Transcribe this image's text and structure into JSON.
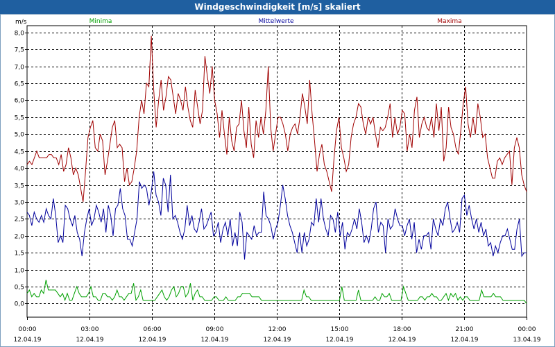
{
  "window": {
    "title": "Windgeschwindigkeit [m/s] skaliert"
  },
  "colors": {
    "minima": "#00a000",
    "mittel": "#00009c",
    "maxima": "#a00000",
    "grid": "#000000"
  },
  "chart_data": {
    "type": "line",
    "ylabel": "m/s",
    "ylim": [
      -0.4,
      8.2
    ],
    "yticks": [
      "0,0",
      "0,5",
      "1,0",
      "1,5",
      "2,0",
      "2,5",
      "3,0",
      "3,5",
      "4,0",
      "4,5",
      "5,0",
      "5,5",
      "6,0",
      "6,5",
      "7,0",
      "7,5",
      "8,0"
    ],
    "yticks_values": [
      0,
      0.5,
      1,
      1.5,
      2,
      2.5,
      3,
      3.5,
      4,
      4.5,
      5,
      5.5,
      6,
      6.5,
      7,
      7.5,
      8
    ],
    "xlim": [
      0,
      24
    ],
    "xticks": [
      {
        "time": "00:00",
        "date": "12.04.19"
      },
      {
        "time": "03:00",
        "date": "12.04.19"
      },
      {
        "time": "06:00",
        "date": "12.04.19"
      },
      {
        "time": "09:00",
        "date": "12.04.19"
      },
      {
        "time": "12:00",
        "date": "12.04.19"
      },
      {
        "time": "15:00",
        "date": "12.04.19"
      },
      {
        "time": "18:00",
        "date": "12.04.19"
      },
      {
        "time": "21:00",
        "date": "12.04.19"
      },
      {
        "time": "00:00",
        "date": "13.04.19"
      }
    ],
    "series": [
      {
        "name": "Minima",
        "values": [
          0.3,
          0.4,
          0.2,
          0.3,
          0.2,
          0.2,
          0.4,
          0.3,
          0.7,
          0.4,
          0.4,
          0.4,
          0.4,
          0.3,
          0.2,
          0.3,
          0.1,
          0.3,
          0.1,
          0.1,
          0.3,
          0.5,
          0.3,
          0.2,
          0.2,
          0.2,
          0.3,
          0.5,
          0.2,
          0.2,
          0.1,
          0.1,
          0.3,
          0.3,
          0.2,
          0.2,
          0.1,
          0.2,
          0.4,
          0.2,
          0.2,
          0.1,
          0.2,
          0.3,
          0.3,
          0.6,
          0.1,
          0.2,
          0.4,
          0.1,
          0.1,
          0.1,
          0.1,
          0.1,
          0.1,
          0.2,
          0.3,
          0.4,
          0.2,
          0.1,
          0.2,
          0.4,
          0.5,
          0.2,
          0.3,
          0.5,
          0.5,
          0.2,
          0.3,
          0.6,
          0.1,
          0.3,
          0.4,
          0.2,
          0.2,
          0.1,
          0.1,
          0.1,
          0.1,
          0.2,
          0.2,
          0.1,
          0.1,
          0.1,
          0.2,
          0.1,
          0.1,
          0.1,
          0.1,
          0.2,
          0.2,
          0.3,
          0.3,
          0.3,
          0.3,
          0.2,
          0.2,
          0.2,
          0.2,
          0.1,
          0.1,
          0.1,
          0.1,
          0.1,
          0.1,
          0.1,
          0.1,
          0.1,
          0.1,
          0.1,
          0.1,
          0.1,
          0.1,
          0.1,
          0.1,
          0.1,
          0.1,
          0.4,
          0.2,
          0.2,
          0.1,
          0.1,
          0.1,
          0.1,
          0.1,
          0.1,
          0.1,
          0.1,
          0.1,
          0.1,
          0.1,
          0.1,
          0.1,
          0.5,
          0.1,
          0.1,
          0.1,
          0.1,
          0.1,
          0.1,
          0.4,
          0.1,
          0.1,
          0.1,
          0.1,
          0.1,
          0.1,
          0.2,
          0.1,
          0.1,
          0.3,
          0.2,
          0.2,
          0.3,
          0.1,
          0.1,
          0.1,
          0.1,
          0.1,
          0.5,
          0.3,
          0.1,
          0.1,
          0.1,
          0.1,
          0.1,
          0.2,
          0.2,
          0.1,
          0.2,
          0.2,
          0.3,
          0.2,
          0.2,
          0.1,
          0.1,
          0.2,
          0.3,
          0.1,
          0.3,
          0.2,
          0.3,
          0.1,
          0.2,
          0.1,
          0.2,
          0.2,
          0.1,
          0.1,
          0.1,
          0.1,
          0.1,
          0.4,
          0.2,
          0.2,
          0.2,
          0.2,
          0.3,
          0.2,
          0.2,
          0.2,
          0.1,
          0.1,
          0.1,
          0.1,
          0.1,
          0.1,
          0.1,
          0.1,
          0.1,
          0.1,
          0.0
        ]
      },
      {
        "name": "Mittelwerte",
        "values": [
          2.7,
          2.6,
          2.3,
          2.7,
          2.5,
          2.4,
          2.6,
          2.4,
          2.8,
          2.6,
          2.5,
          3.1,
          2.6,
          1.8,
          2.0,
          1.8,
          2.9,
          2.8,
          2.5,
          2.3,
          2.6,
          2.1,
          1.9,
          1.4,
          2.1,
          2.5,
          2.8,
          2.3,
          2.5,
          2.9,
          2.7,
          2.4,
          2.8,
          2.1,
          2.9,
          2.6,
          2.0,
          2.8,
          2.9,
          3.4,
          2.8,
          2.6,
          1.9,
          1.9,
          1.7,
          2.1,
          2.5,
          3.6,
          3.4,
          3.5,
          3.4,
          2.9,
          3.3,
          3.9,
          3.2,
          3.0,
          2.6,
          3.7,
          3.5,
          2.7,
          3.8,
          2.5,
          2.6,
          2.4,
          2.1,
          1.9,
          2.2,
          2.9,
          2.3,
          2.6,
          2.2,
          2.1,
          2.4,
          2.8,
          2.2,
          2.3,
          2.5,
          2.7,
          2.0,
          2.1,
          2.4,
          1.8,
          2.2,
          2.4,
          2.0,
          2.5,
          1.7,
          2.1,
          1.7,
          2.7,
          2.4,
          1.3,
          2.1,
          2.0,
          1.9,
          2.3,
          2.0,
          2.1,
          2.1,
          3.3,
          2.6,
          2.5,
          2.3,
          1.9,
          2.2,
          2.4,
          2.9,
          3.5,
          3.1,
          2.6,
          2.3,
          2.1,
          1.8,
          1.5,
          2.1,
          1.5,
          2.1,
          1.7,
          1.9,
          2.4,
          2.3,
          3.1,
          2.4,
          3.1,
          2.5,
          2.2,
          2.0,
          2.6,
          2.5,
          2.1,
          2.7,
          2.0,
          2.4,
          1.6,
          2.1,
          2.0,
          2.2,
          2.5,
          2.2,
          2.8,
          2.4,
          1.8,
          2.0,
          1.8,
          2.2,
          2.8,
          3.0,
          2.1,
          2.4,
          2.3,
          1.5,
          2.5,
          2.2,
          2.3,
          2.8,
          2.5,
          2.3,
          2.3,
          2.0,
          2.3,
          2.5,
          1.9,
          2.4,
          1.5,
          1.9,
          1.6,
          2.0,
          2.0,
          2.1,
          1.6,
          2.5,
          2.2,
          2.0,
          2.5,
          2.3,
          2.8,
          3.0,
          2.5,
          2.1,
          2.2,
          2.4,
          2.1,
          3.1,
          3.2,
          2.6,
          2.9,
          2.5,
          2.2,
          2.5,
          2.1,
          2.4,
          2.0,
          2.2,
          1.7,
          1.8,
          1.4,
          1.7,
          1.5,
          1.8,
          2.0,
          2.0,
          2.2,
          1.9,
          1.6,
          1.6,
          2.2,
          2.5,
          1.4,
          1.5,
          1.5
        ]
      },
      {
        "name": "Maxima",
        "values": [
          4.1,
          4.2,
          4.1,
          4.3,
          4.5,
          4.3,
          4.3,
          4.3,
          4.3,
          4.4,
          4.4,
          4.3,
          4.3,
          4.1,
          4.4,
          3.9,
          4.1,
          4.6,
          4.3,
          3.8,
          4.0,
          3.8,
          3.4,
          3.0,
          3.9,
          4.9,
          5.2,
          5.4,
          4.6,
          4.5,
          5.0,
          4.8,
          3.8,
          4.2,
          4.7,
          5.2,
          5.4,
          4.6,
          4.7,
          4.6,
          3.6,
          4.0,
          3.5,
          3.6,
          4.0,
          4.5,
          5.5,
          6.0,
          5.6,
          6.5,
          6.4,
          7.9,
          6.3,
          5.2,
          6.0,
          6.6,
          5.7,
          6.1,
          6.7,
          6.6,
          6.1,
          5.6,
          6.2,
          6.0,
          5.7,
          6.4,
          5.8,
          5.4,
          5.2,
          6.3,
          5.8,
          5.3,
          5.7,
          7.3,
          6.7,
          6.2,
          7.0,
          6.0,
          5.6,
          4.9,
          5.7,
          5.0,
          4.4,
          5.5,
          4.8,
          4.5,
          5.2,
          5.3,
          6.0,
          5.1,
          4.6,
          5.8,
          4.7,
          4.3,
          5.4,
          4.9,
          5.5,
          5.0,
          5.7,
          7.0,
          5.2,
          4.5,
          5.0,
          5.5,
          5.5,
          5.3,
          5.0,
          4.5,
          5.0,
          5.2,
          5.3,
          5.0,
          5.5,
          6.2,
          5.8,
          5.3,
          6.6,
          5.6,
          4.8,
          3.9,
          4.4,
          4.7,
          4.1,
          3.9,
          3.6,
          3.3,
          4.3,
          5.1,
          5.5,
          4.6,
          4.3,
          3.9,
          4.1,
          4.9,
          5.3,
          5.5,
          5.9,
          5.8,
          5.3,
          5.0,
          5.5,
          5.3,
          5.5,
          5.0,
          4.6,
          5.2,
          5.1,
          5.2,
          5.5,
          5.9,
          4.9,
          5.5,
          5.0,
          5.2,
          5.7,
          5.6,
          4.5,
          5.0,
          4.6,
          5.7,
          6.1,
          4.9,
          5.3,
          5.5,
          5.2,
          5.1,
          5.5,
          4.9,
          5.9,
          5.1,
          5.8,
          4.2,
          4.6,
          5.8,
          5.2,
          5.0,
          4.6,
          4.4,
          5.1,
          5.9,
          6.4,
          5.3,
          4.9,
          5.5,
          5.0,
          5.9,
          5.5,
          4.9,
          5.0,
          4.3,
          4.0,
          3.7,
          3.7,
          4.2,
          4.3,
          4.1,
          4.3,
          4.4,
          4.5,
          3.5,
          4.6,
          4.9,
          4.6,
          3.8,
          3.5,
          3.3
        ]
      }
    ]
  }
}
